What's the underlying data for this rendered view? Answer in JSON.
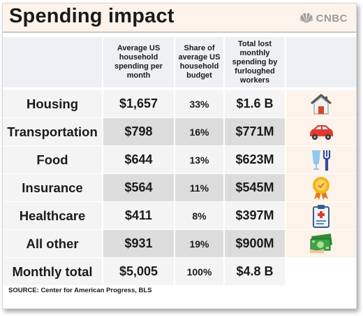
{
  "title": "Spending impact",
  "logo": {
    "text": "CNBC",
    "icon": "nbc-peacock-icon"
  },
  "colors": {
    "title_bg": "#fdf3ea",
    "header_bg": "#eef0f3",
    "row_light": "#f4f4f4",
    "row_dark": "#dcdcdc"
  },
  "chart_data": {
    "type": "table",
    "title": "Spending impact",
    "columns": [
      "",
      "Average US household spending per month",
      "Share of average US household budget",
      "Total lost monthly spending by furloughed workers",
      ""
    ],
    "rows": [
      {
        "category": "Housing",
        "spending": "$1,657",
        "share": "33%",
        "lost": "$1.6 B",
        "icon": "house-icon"
      },
      {
        "category": "Transportation",
        "spending": "$798",
        "share": "16%",
        "lost": "$771M",
        "icon": "car-icon"
      },
      {
        "category": "Food",
        "spending": "$644",
        "share": "13%",
        "lost": "$623M",
        "icon": "glass-fork-icon"
      },
      {
        "category": "Insurance",
        "spending": "$564",
        "share": "11%",
        "lost": "$545M",
        "icon": "award-badge-icon"
      },
      {
        "category": "Healthcare",
        "spending": "$411",
        "share": "8%",
        "lost": "$397M",
        "icon": "medical-clipboard-icon"
      },
      {
        "category": "All other",
        "spending": "$931",
        "share": "19%",
        "lost": "$900M",
        "icon": "money-icon"
      },
      {
        "category": "Monthly total",
        "spending": "$5,005",
        "share": "100%",
        "lost": "$4.8 B",
        "icon": ""
      }
    ],
    "values": {
      "spending_usd": [
        1657,
        798,
        644,
        564,
        411,
        931,
        5005
      ],
      "share_pct": [
        33,
        16,
        13,
        11,
        8,
        19,
        100
      ]
    }
  },
  "source": "SOURCE: Center for American Progress, BLS"
}
